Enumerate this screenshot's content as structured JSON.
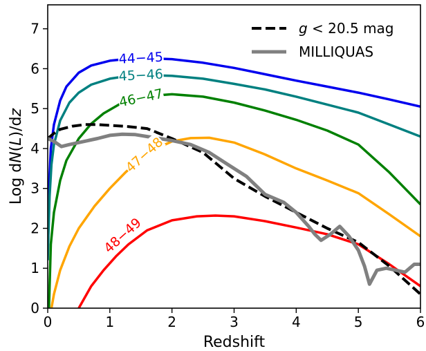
{
  "chart_data": {
    "type": "line",
    "xlabel": "Redshift",
    "ylabel": "Log dN(L)/dz",
    "xlim": [
      0,
      6
    ],
    "ylim": [
      0,
      7.6
    ],
    "xticks": [
      "0",
      "1",
      "2",
      "3",
      "4",
      "5",
      "6"
    ],
    "yticks": [
      "0",
      "1",
      "2",
      "3",
      "4",
      "5",
      "6",
      "7"
    ],
    "grid": false,
    "legend_position": "top-right",
    "legend": [
      {
        "label": "g < 20.5 mag",
        "series": "g_lt_20_5"
      },
      {
        "label": "MILLIQUAS",
        "series": "milliquas"
      }
    ],
    "series": [
      {
        "name": "44−45",
        "color": "#0000ee",
        "style": "solid",
        "x": [
          0.0,
          0.02,
          0.05,
          0.1,
          0.2,
          0.3,
          0.5,
          0.7,
          1.0,
          1.3,
          1.6,
          2.0,
          2.5,
          3.0,
          3.5,
          4.0,
          4.5,
          5.0,
          5.5,
          6.0
        ],
        "y": [
          1.8,
          3.0,
          4.0,
          4.6,
          5.2,
          5.55,
          5.9,
          6.08,
          6.2,
          6.25,
          6.26,
          6.24,
          6.15,
          6.02,
          5.86,
          5.7,
          5.55,
          5.4,
          5.23,
          5.05
        ]
      },
      {
        "name": "45−46",
        "color": "#008080",
        "style": "solid",
        "x": [
          0.0,
          0.03,
          0.06,
          0.1,
          0.2,
          0.35,
          0.5,
          0.7,
          1.0,
          1.3,
          1.6,
          2.0,
          2.5,
          3.0,
          3.5,
          4.0,
          4.5,
          5.0,
          5.5,
          6.0
        ],
        "y": [
          1.2,
          2.8,
          3.6,
          4.1,
          4.7,
          5.15,
          5.4,
          5.6,
          5.75,
          5.82,
          5.84,
          5.82,
          5.75,
          5.62,
          5.48,
          5.3,
          5.1,
          4.9,
          4.6,
          4.3
        ]
      },
      {
        "name": "46−47",
        "color": "#008000",
        "style": "solid",
        "x": [
          0.02,
          0.05,
          0.1,
          0.2,
          0.3,
          0.5,
          0.7,
          0.9,
          1.2,
          1.5,
          2.0,
          2.5,
          3.0,
          3.5,
          4.0,
          4.5,
          5.0,
          5.5,
          6.0
        ],
        "y": [
          0.0,
          1.6,
          2.4,
          3.2,
          3.7,
          4.25,
          4.62,
          4.88,
          5.15,
          5.3,
          5.36,
          5.3,
          5.15,
          4.95,
          4.72,
          4.45,
          4.1,
          3.4,
          2.6
        ]
      },
      {
        "name": "47−48",
        "color": "#ffa500",
        "style": "solid",
        "x": [
          0.06,
          0.1,
          0.2,
          0.35,
          0.5,
          0.75,
          1.0,
          1.25,
          1.5,
          1.75,
          2.0,
          2.3,
          2.6,
          3.0,
          3.5,
          4.0,
          4.5,
          5.0,
          5.5,
          6.0
        ],
        "y": [
          0.0,
          0.35,
          0.95,
          1.55,
          2.0,
          2.55,
          3.0,
          3.4,
          3.75,
          4.0,
          4.18,
          4.26,
          4.27,
          4.15,
          3.85,
          3.5,
          3.2,
          2.88,
          2.35,
          1.8
        ]
      },
      {
        "name": "48−49",
        "color": "#ff0000",
        "style": "solid",
        "x": [
          0.5,
          0.7,
          0.9,
          1.1,
          1.3,
          1.6,
          2.0,
          2.4,
          2.7,
          3.0,
          3.5,
          4.0,
          4.5,
          5.0,
          5.5,
          6.0
        ],
        "y": [
          0.0,
          0.55,
          0.95,
          1.3,
          1.6,
          1.95,
          2.2,
          2.3,
          2.32,
          2.3,
          2.18,
          2.02,
          1.85,
          1.6,
          1.1,
          0.55
        ]
      },
      {
        "name": "g_lt_20_5",
        "color": "#000000",
        "style": "dashed",
        "x": [
          0.0,
          0.1,
          0.2,
          0.4,
          0.6,
          0.8,
          1.0,
          1.3,
          1.6,
          2.0,
          2.5,
          3.0,
          3.5,
          4.0,
          4.5,
          5.0,
          5.5,
          6.0
        ],
        "y": [
          4.25,
          4.38,
          4.48,
          4.56,
          4.6,
          4.6,
          4.58,
          4.55,
          4.5,
          4.25,
          3.9,
          3.25,
          2.8,
          2.4,
          2.0,
          1.65,
          1.05,
          0.35
        ]
      },
      {
        "name": "milliquas",
        "color": "#808080",
        "style": "solid",
        "x": [
          0.0,
          0.1,
          0.22,
          0.35,
          0.5,
          0.65,
          0.8,
          1.0,
          1.2,
          1.4,
          1.6,
          1.8,
          2.0,
          2.3,
          2.6,
          2.9,
          3.2,
          3.5,
          3.8,
          4.0,
          4.2,
          4.3,
          4.4,
          4.55,
          4.7,
          4.85,
          5.0,
          5.1,
          5.18,
          5.3,
          5.45,
          5.6,
          5.75,
          5.9,
          6.0
        ],
        "y": [
          4.25,
          4.18,
          4.05,
          4.1,
          4.15,
          4.2,
          4.25,
          4.33,
          4.36,
          4.35,
          4.3,
          4.25,
          4.2,
          4.1,
          3.9,
          3.6,
          3.3,
          2.85,
          2.65,
          2.4,
          2.05,
          1.85,
          1.7,
          1.85,
          2.05,
          1.8,
          1.45,
          1.05,
          0.6,
          0.95,
          1.0,
          0.95,
          0.9,
          1.1,
          1.1
        ]
      }
    ],
    "curve_labels": [
      {
        "text": "44−45",
        "color": "#0000ee",
        "x": 1.5,
        "y": 6.28
      },
      {
        "text": "45−46",
        "color": "#008080",
        "x": 1.5,
        "y": 5.85
      },
      {
        "text": "46−47",
        "color": "#008000",
        "x": 1.5,
        "y": 5.28
      },
      {
        "text": "47−48",
        "color": "#ffa500",
        "x": 1.55,
        "y": 3.85
      },
      {
        "text": "48−49",
        "color": "#ff0000",
        "x": 1.2,
        "y": 1.83
      }
    ]
  },
  "legend_labels": {
    "g_lt_20_5": "g < 20.5 mag",
    "milliquas": "MILLIQUAS"
  }
}
